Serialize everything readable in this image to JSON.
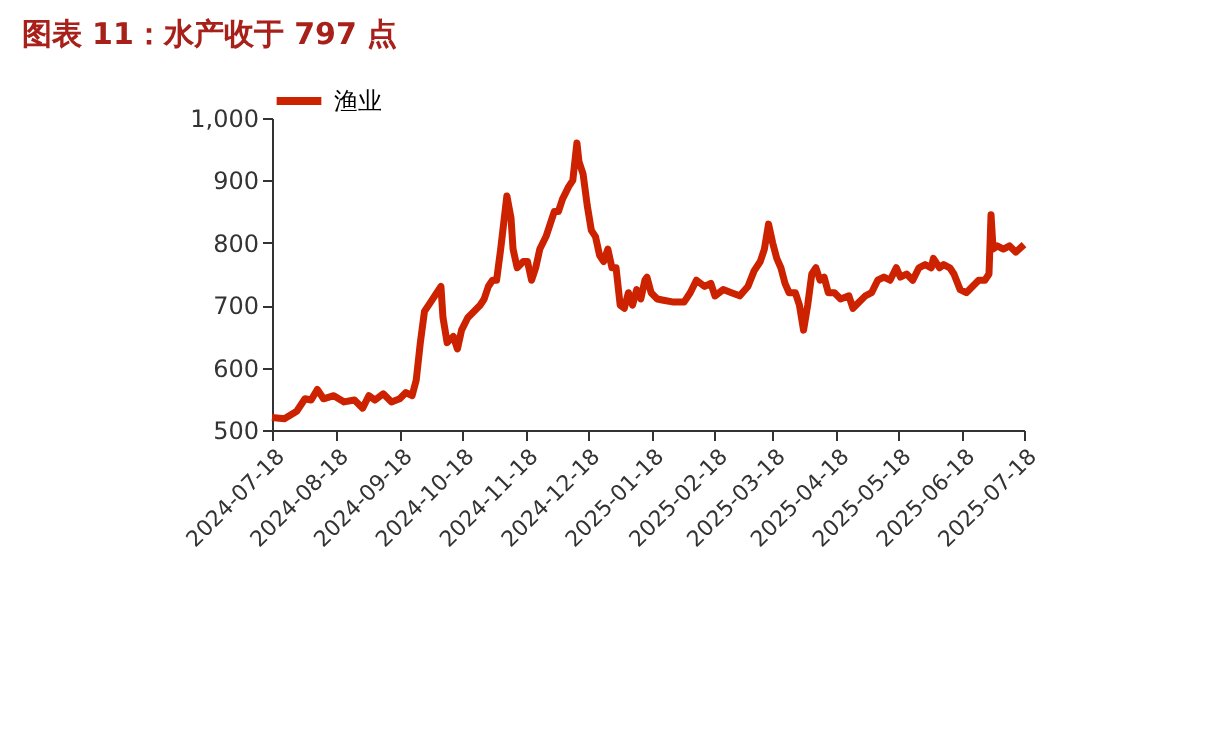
{
  "chart_data": {
    "type": "line",
    "title": "图表 11：水产收于 797 点",
    "x": [
      "2024-07-18",
      "2024-07-24",
      "2024-07-30",
      "2024-08-03",
      "2024-08-06",
      "2024-08-09",
      "2024-08-12",
      "2024-08-17",
      "2024-08-22",
      "2024-08-27",
      "2024-08-31",
      "2024-09-03",
      "2024-09-06",
      "2024-09-10",
      "2024-09-14",
      "2024-09-18",
      "2024-09-21",
      "2024-09-24",
      "2024-09-26",
      "2024-09-28",
      "2024-09-30",
      "2024-10-03",
      "2024-10-06",
      "2024-10-08",
      "2024-10-09",
      "2024-10-11",
      "2024-10-14",
      "2024-10-16",
      "2024-10-18",
      "2024-10-21",
      "2024-10-24",
      "2024-10-27",
      "2024-10-29",
      "2024-10-31",
      "2024-11-02",
      "2024-11-04",
      "2024-11-06",
      "2024-11-09",
      "2024-11-11",
      "2024-11-12",
      "2024-11-14",
      "2024-11-17",
      "2024-11-19",
      "2024-11-21",
      "2024-11-23",
      "2024-11-25",
      "2024-11-28",
      "2024-11-30",
      "2024-12-02",
      "2024-12-04",
      "2024-12-06",
      "2024-12-09",
      "2024-12-11",
      "2024-12-13",
      "2024-12-14",
      "2024-12-16",
      "2024-12-18",
      "2024-12-20",
      "2024-12-22",
      "2024-12-24",
      "2024-12-26",
      "2024-12-28",
      "2024-12-30",
      "2025-01-01",
      "2025-01-03",
      "2025-01-05",
      "2025-01-07",
      "2025-01-09",
      "2025-01-11",
      "2025-01-13",
      "2025-01-15",
      "2025-01-16",
      "2025-01-18",
      "2025-01-21",
      "2025-01-24",
      "2025-01-29",
      "2025-02-03",
      "2025-02-06",
      "2025-02-09",
      "2025-02-13",
      "2025-02-16",
      "2025-02-18",
      "2025-02-22",
      "2025-02-26",
      "2025-03-02",
      "2025-03-06",
      "2025-03-09",
      "2025-03-12",
      "2025-03-14",
      "2025-03-16",
      "2025-03-18",
      "2025-03-20",
      "2025-03-22",
      "2025-03-24",
      "2025-03-26",
      "2025-03-29",
      "2025-03-31",
      "2025-04-02",
      "2025-04-04",
      "2025-04-06",
      "2025-04-08",
      "2025-04-10",
      "2025-04-12",
      "2025-04-14",
      "2025-04-17",
      "2025-04-20",
      "2025-04-24",
      "2025-04-26",
      "2025-04-29",
      "2025-05-02",
      "2025-05-05",
      "2025-05-08",
      "2025-05-11",
      "2025-05-14",
      "2025-05-17",
      "2025-05-19",
      "2025-05-22",
      "2025-05-25",
      "2025-05-28",
      "2025-05-31",
      "2025-06-03",
      "2025-06-04",
      "2025-06-07",
      "2025-06-09",
      "2025-06-12",
      "2025-06-14",
      "2025-06-17",
      "2025-06-20",
      "2025-06-23",
      "2025-06-26",
      "2025-06-29",
      "2025-07-01",
      "2025-07-02",
      "2025-07-03",
      "2025-07-05",
      "2025-07-08",
      "2025-07-11",
      "2025-07-14",
      "2025-07-18"
    ],
    "series": [
      {
        "name": "渔业",
        "color": "#cc2200",
        "values": [
          520,
          518,
          530,
          550,
          548,
          565,
          550,
          555,
          545,
          548,
          535,
          555,
          548,
          558,
          545,
          550,
          560,
          555,
          580,
          640,
          690,
          705,
          720,
          730,
          680,
          640,
          650,
          630,
          660,
          680,
          690,
          700,
          710,
          730,
          740,
          740,
          790,
          875,
          840,
          790,
          760,
          770,
          770,
          740,
          760,
          790,
          810,
          830,
          850,
          850,
          870,
          890,
          900,
          960,
          930,
          910,
          860,
          820,
          810,
          780,
          770,
          790,
          760,
          760,
          700,
          695,
          720,
          700,
          725,
          710,
          740,
          745,
          720,
          710,
          708,
          705,
          705,
          720,
          740,
          730,
          735,
          715,
          725,
          720,
          715,
          730,
          755,
          770,
          790,
          830,
          800,
          775,
          760,
          735,
          720,
          720,
          700,
          660,
          700,
          750,
          760,
          740,
          745,
          720,
          720,
          710,
          715,
          695,
          705,
          715,
          720,
          740,
          745,
          740,
          760,
          745,
          750,
          740,
          760,
          765,
          760,
          775,
          760,
          765,
          760,
          750,
          725,
          720,
          730,
          740,
          740,
          750,
          845,
          790,
          795,
          790,
          795,
          785,
          797
        ]
      }
    ],
    "xlim": [
      "2024-07-18",
      "2025-07-18"
    ],
    "xticks": [
      "2024-07-18",
      "2024-08-18",
      "2024-09-18",
      "2024-10-18",
      "2024-11-18",
      "2024-12-18",
      "2025-01-18",
      "2025-02-18",
      "2025-03-18",
      "2025-04-18",
      "2025-05-18",
      "2025-06-18",
      "2025-07-18"
    ],
    "ylim": [
      500,
      1000
    ],
    "yticks": [
      500,
      600,
      700,
      800,
      900,
      {
        "value": 1000,
        "label": "1,000"
      }
    ],
    "grid": false,
    "legend": "top",
    "line_style": "solid",
    "marker": "none"
  }
}
